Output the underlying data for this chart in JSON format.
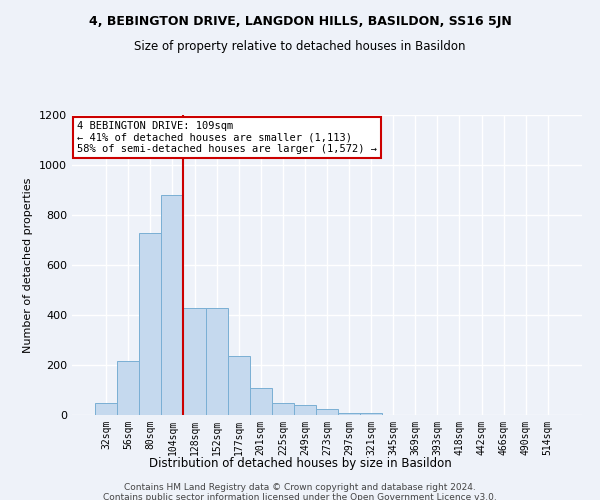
{
  "title": "4, BEBINGTON DRIVE, LANGDON HILLS, BASILDON, SS16 5JN",
  "subtitle": "Size of property relative to detached houses in Basildon",
  "xlabel": "Distribution of detached houses by size in Basildon",
  "ylabel": "Number of detached properties",
  "bar_color": "#c5d9ee",
  "bar_edge_color": "#7aafd4",
  "background_color": "#eef2f9",
  "grid_color": "#ffffff",
  "categories": [
    "32sqm",
    "56sqm",
    "80sqm",
    "104sqm",
    "128sqm",
    "152sqm",
    "177sqm",
    "201sqm",
    "225sqm",
    "249sqm",
    "273sqm",
    "297sqm",
    "321sqm",
    "345sqm",
    "369sqm",
    "393sqm",
    "418sqm",
    "442sqm",
    "466sqm",
    "490sqm",
    "514sqm"
  ],
  "values": [
    50,
    215,
    730,
    880,
    430,
    430,
    235,
    110,
    47,
    42,
    25,
    10,
    10,
    0,
    0,
    0,
    0,
    0,
    0,
    0,
    0
  ],
  "ylim": [
    0,
    1200
  ],
  "yticks": [
    0,
    200,
    400,
    600,
    800,
    1000,
    1200
  ],
  "property_line_x": 4.0,
  "annotation_text": "4 BEBINGTON DRIVE: 109sqm\n← 41% of detached houses are smaller (1,113)\n58% of semi-detached houses are larger (1,572) →",
  "annotation_box_color": "white",
  "annotation_box_edge_color": "#cc0000",
  "property_line_color": "#cc0000",
  "footer_line1": "Contains HM Land Registry data © Crown copyright and database right 2024.",
  "footer_line2": "Contains public sector information licensed under the Open Government Licence v3.0."
}
